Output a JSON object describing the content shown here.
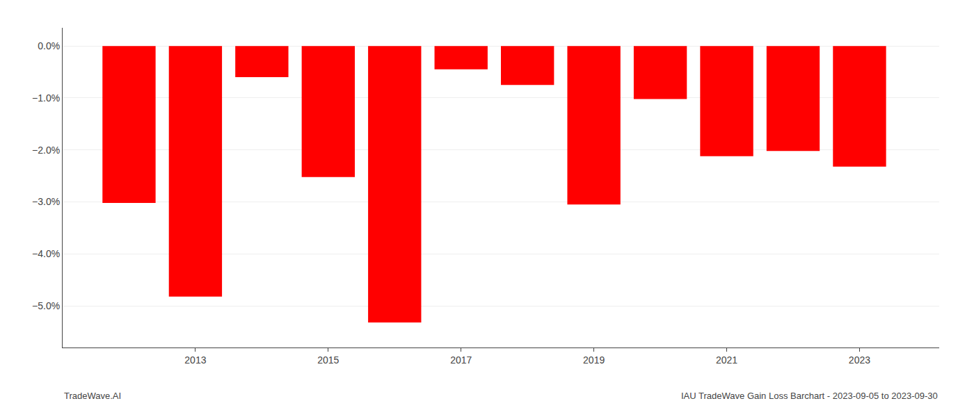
{
  "chart_data": {
    "type": "bar",
    "x": [
      2012,
      2013,
      2014,
      2015,
      2016,
      2017,
      2018,
      2019,
      2020,
      2021,
      2022,
      2023
    ],
    "values": [
      -3.02,
      -4.82,
      -0.6,
      -2.52,
      -5.32,
      -0.45,
      -0.75,
      -3.05,
      -1.02,
      -2.12,
      -2.02,
      -2.32
    ],
    "color": "#FF0000",
    "ylim": [
      -5.8,
      0.35
    ],
    "yticks": [
      {
        "value": 0.0,
        "label": "0.0%"
      },
      {
        "value": -1.0,
        "label": "−1.0%"
      },
      {
        "value": -2.0,
        "label": "−2.0%"
      },
      {
        "value": -3.0,
        "label": "−3.0%"
      },
      {
        "value": -4.0,
        "label": "−4.0%"
      },
      {
        "value": -5.0,
        "label": "−5.0%"
      }
    ],
    "xlim": [
      2011.0,
      2024.2
    ],
    "xticks": [
      2013,
      2015,
      2017,
      2019,
      2021,
      2023
    ],
    "grid": true,
    "annotations": [
      "TradeWave.AI",
      "IAU TradeWave Gain Loss Barchart - 2023-09-05 to 2023-09-30"
    ]
  }
}
